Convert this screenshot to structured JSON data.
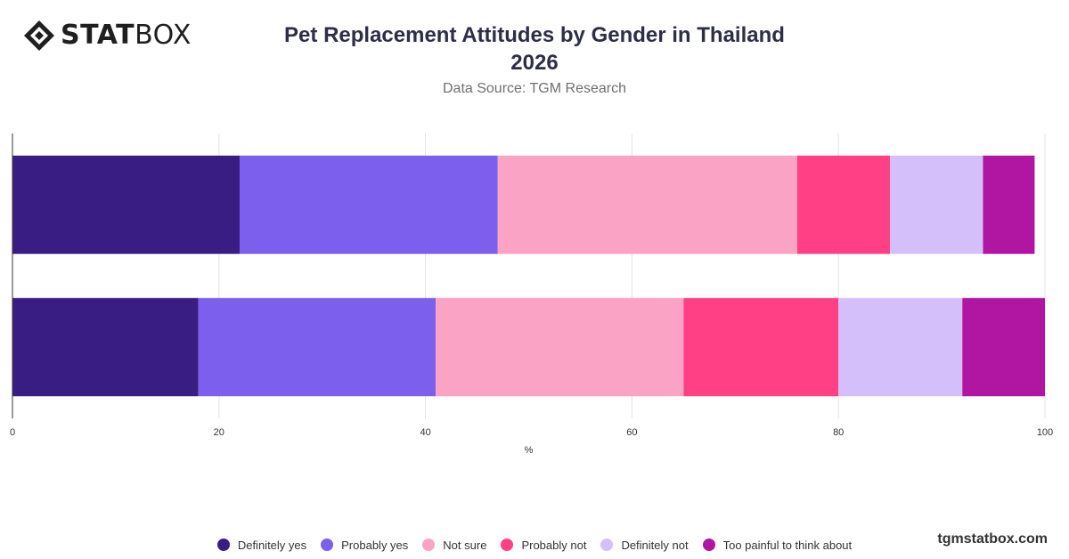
{
  "logo": {
    "text_bold": "STAT",
    "text_light": "BOX"
  },
  "header": {
    "title_line1": "Pet Replacement Attitudes by Gender in Thailand",
    "title_line2": "2026",
    "subtitle": "Data Source: TGM Research"
  },
  "footer": {
    "brand": "tgmstatbox.com"
  },
  "chart_data": {
    "type": "bar",
    "orientation": "horizontal",
    "stacked": true,
    "categories": [
      "",
      ""
    ],
    "xlabel": "%",
    "xlim": [
      0,
      100
    ],
    "xticks": [
      0,
      20,
      40,
      60,
      80,
      100
    ],
    "grid": true,
    "legend_position": "bottom",
    "series": [
      {
        "name": "Definitely yes",
        "color": "#3a1d82",
        "values": [
          22,
          18
        ]
      },
      {
        "name": "Probably yes",
        "color": "#7d5fee",
        "values": [
          25,
          23
        ]
      },
      {
        "name": "Not sure",
        "color": "#fba3c4",
        "values": [
          29,
          24
        ]
      },
      {
        "name": "Probably not",
        "color": "#ff4085",
        "values": [
          9,
          15
        ]
      },
      {
        "name": "Definitely not",
        "color": "#d5bffa",
        "values": [
          9,
          12
        ]
      },
      {
        "name": "Too painful to think about",
        "color": "#b016a1",
        "values": [
          5,
          8
        ]
      }
    ]
  }
}
